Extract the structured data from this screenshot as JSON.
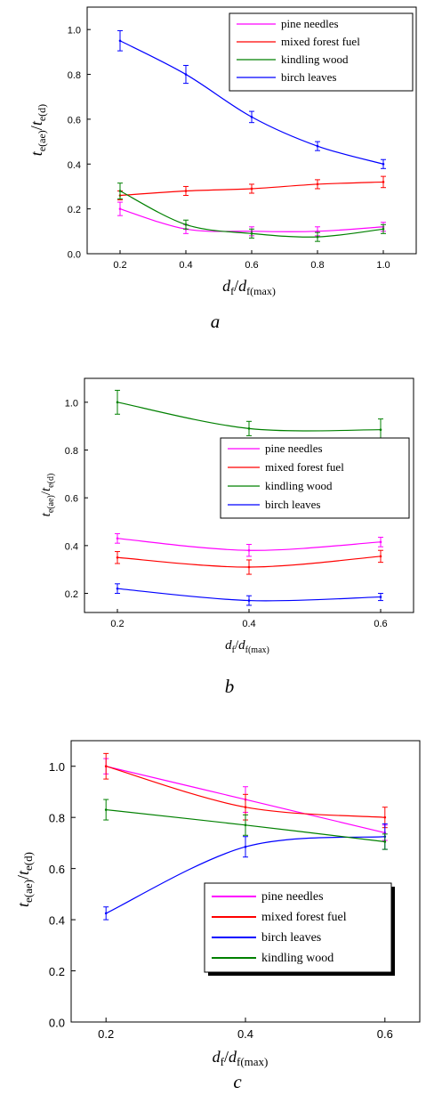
{
  "chart_data": [
    {
      "type": "line",
      "caption": "a",
      "xlabel": {
        "main": "d",
        "sub": "f",
        "sep": "/",
        "main2": "d",
        "sub2": "f(max)"
      },
      "ylabel": {
        "main": "t",
        "sub": "e(ae)",
        "sep": "/",
        "main2": "t",
        "sub2": "e(d)"
      },
      "x": [
        0.2,
        0.4,
        0.6,
        0.8,
        1.0
      ],
      "xlim": [
        0.1,
        1.1
      ],
      "ylim": [
        0,
        1.1
      ],
      "xticks": [
        "0.2",
        "0.4",
        "0.6",
        "0.8",
        "1.0"
      ],
      "yticks": [
        "0.0",
        "0.2",
        "0.4",
        "0.6",
        "0.8",
        "1.0"
      ],
      "grid": false,
      "legend_position": "top-right",
      "series": [
        {
          "name": "pine needles",
          "color": "#ff00ff",
          "values": [
            0.2,
            0.11,
            0.1,
            0.1,
            0.12
          ],
          "errors": [
            0.03,
            0.02,
            0.02,
            0.02,
            0.02
          ]
        },
        {
          "name": "mixed forest fuel",
          "color": "#ff0000",
          "values": [
            0.26,
            0.28,
            0.29,
            0.31,
            0.32
          ],
          "errors": [
            0.02,
            0.02,
            0.02,
            0.02,
            0.025
          ]
        },
        {
          "name": "kindling wood",
          "color": "#008000",
          "values": [
            0.28,
            0.13,
            0.09,
            0.075,
            0.11
          ],
          "errors": [
            0.035,
            0.02,
            0.02,
            0.02,
            0.02
          ]
        },
        {
          "name": "birch leaves",
          "color": "#0000ff",
          "values": [
            0.95,
            0.8,
            0.61,
            0.48,
            0.4
          ],
          "errors": [
            0.045,
            0.04,
            0.025,
            0.02,
            0.02
          ]
        }
      ]
    },
    {
      "type": "line",
      "caption": "b",
      "xlabel": {
        "main": "d",
        "sub": "f",
        "sep": "/",
        "main2": "d",
        "sub2": "f(max)"
      },
      "ylabel": {
        "main": "t",
        "sub": "e(ae)",
        "sep": "/",
        "main2": "t",
        "sub2": "e(d)"
      },
      "x": [
        0.2,
        0.4,
        0.6
      ],
      "xlim": [
        0.15,
        0.65
      ],
      "ylim": [
        0.12,
        1.1
      ],
      "xticks": [
        "0.2",
        "0.4",
        "0.6"
      ],
      "yticks": [
        "0.2",
        "0.4",
        "0.6",
        "0.8",
        "1.0"
      ],
      "grid": false,
      "legend_position": "center-right",
      "series": [
        {
          "name": "pine needles",
          "color": "#ff00ff",
          "values": [
            0.43,
            0.38,
            0.415
          ],
          "errors": [
            0.02,
            0.025,
            0.02
          ]
        },
        {
          "name": "mixed forest fuel",
          "color": "#ff0000",
          "values": [
            0.35,
            0.31,
            0.355
          ],
          "errors": [
            0.025,
            0.03,
            0.025
          ]
        },
        {
          "name": "kindling wood",
          "color": "#008000",
          "values": [
            1.0,
            0.89,
            0.885
          ],
          "errors": [
            0.05,
            0.03,
            0.045
          ]
        },
        {
          "name": "birch leaves",
          "color": "#0000ff",
          "values": [
            0.22,
            0.17,
            0.185
          ],
          "errors": [
            0.02,
            0.02,
            0.015
          ]
        }
      ]
    },
    {
      "type": "line",
      "caption": "c",
      "xlabel": {
        "main": "d",
        "sub": "f",
        "sep": "/",
        "main2": "d",
        "sub2": "f(max)"
      },
      "ylabel": {
        "main": "t",
        "sub": "e(ae)",
        "sep": "/",
        "main2": "t",
        "sub2": "e(d)"
      },
      "x": [
        0.2,
        0.4,
        0.6
      ],
      "xlim": [
        0.15,
        0.65
      ],
      "ylim": [
        0,
        1.1
      ],
      "xticks": [
        "0.2",
        "0.4",
        "0.6"
      ],
      "yticks": [
        "0.0",
        "0.2",
        "0.4",
        "0.6",
        "0.8",
        "1.0"
      ],
      "grid": false,
      "legend_position": "lower-right",
      "series": [
        {
          "name": "pine needles",
          "color": "#ff00ff",
          "values": [
            1.0,
            0.87,
            0.74
          ],
          "errors": [
            0.03,
            0.05,
            0.03
          ]
        },
        {
          "name": "mixed forest fuel",
          "color": "#ff0000",
          "values": [
            1.0,
            0.84,
            0.8
          ],
          "errors": [
            0.05,
            0.05,
            0.04
          ]
        },
        {
          "name": "birch leaves",
          "color": "#0000ff",
          "values": [
            0.425,
            0.685,
            0.725
          ],
          "errors": [
            0.025,
            0.04,
            0.05
          ]
        },
        {
          "name": "kindling wood",
          "color": "#008000",
          "values": [
            0.83,
            0.77,
            0.705
          ],
          "errors": [
            0.04,
            0.04,
            0.03
          ]
        }
      ]
    }
  ]
}
